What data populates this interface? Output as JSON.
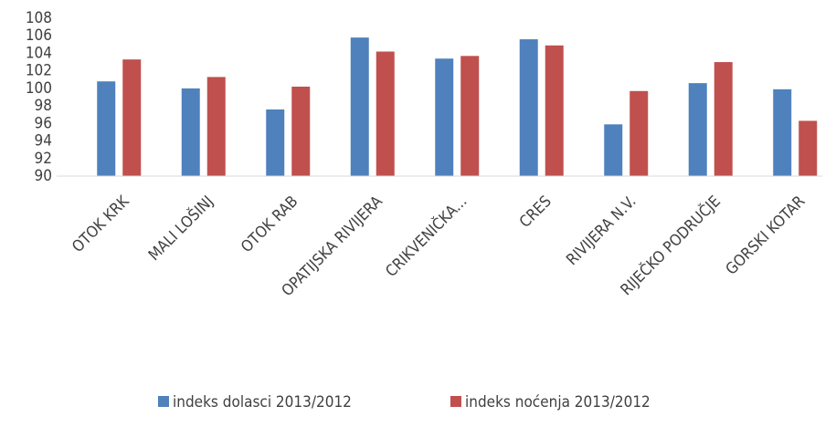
{
  "chart_data": {
    "type": "bar",
    "categories": [
      "OTOK KRK",
      "MALI LOŠINJ",
      "OTOK RAB",
      "OPATIJSKA RIVIJERA",
      "CRIKVENIČKA...",
      "CRES",
      "RIVIJERA N.V.",
      "RIJEČKO PODRUČJE",
      "GORSKI KOTAR"
    ],
    "series": [
      {
        "name": "indeks dolasci 2013/2012",
        "color": "#4f81bd",
        "values": [
          100.8,
          100.0,
          97.6,
          105.8,
          103.4,
          105.6,
          95.9,
          100.6,
          99.9
        ]
      },
      {
        "name": "indeks noćenja 2013/2012",
        "color": "#c0504d",
        "values": [
          103.3,
          101.3,
          100.2,
          104.2,
          103.7,
          104.9,
          99.7,
          103.0,
          96.3
        ]
      }
    ],
    "ylim": [
      90,
      108
    ],
    "yticks": [
      90,
      92,
      94,
      96,
      98,
      100,
      102,
      104,
      106,
      108
    ],
    "legend": "bottom"
  }
}
